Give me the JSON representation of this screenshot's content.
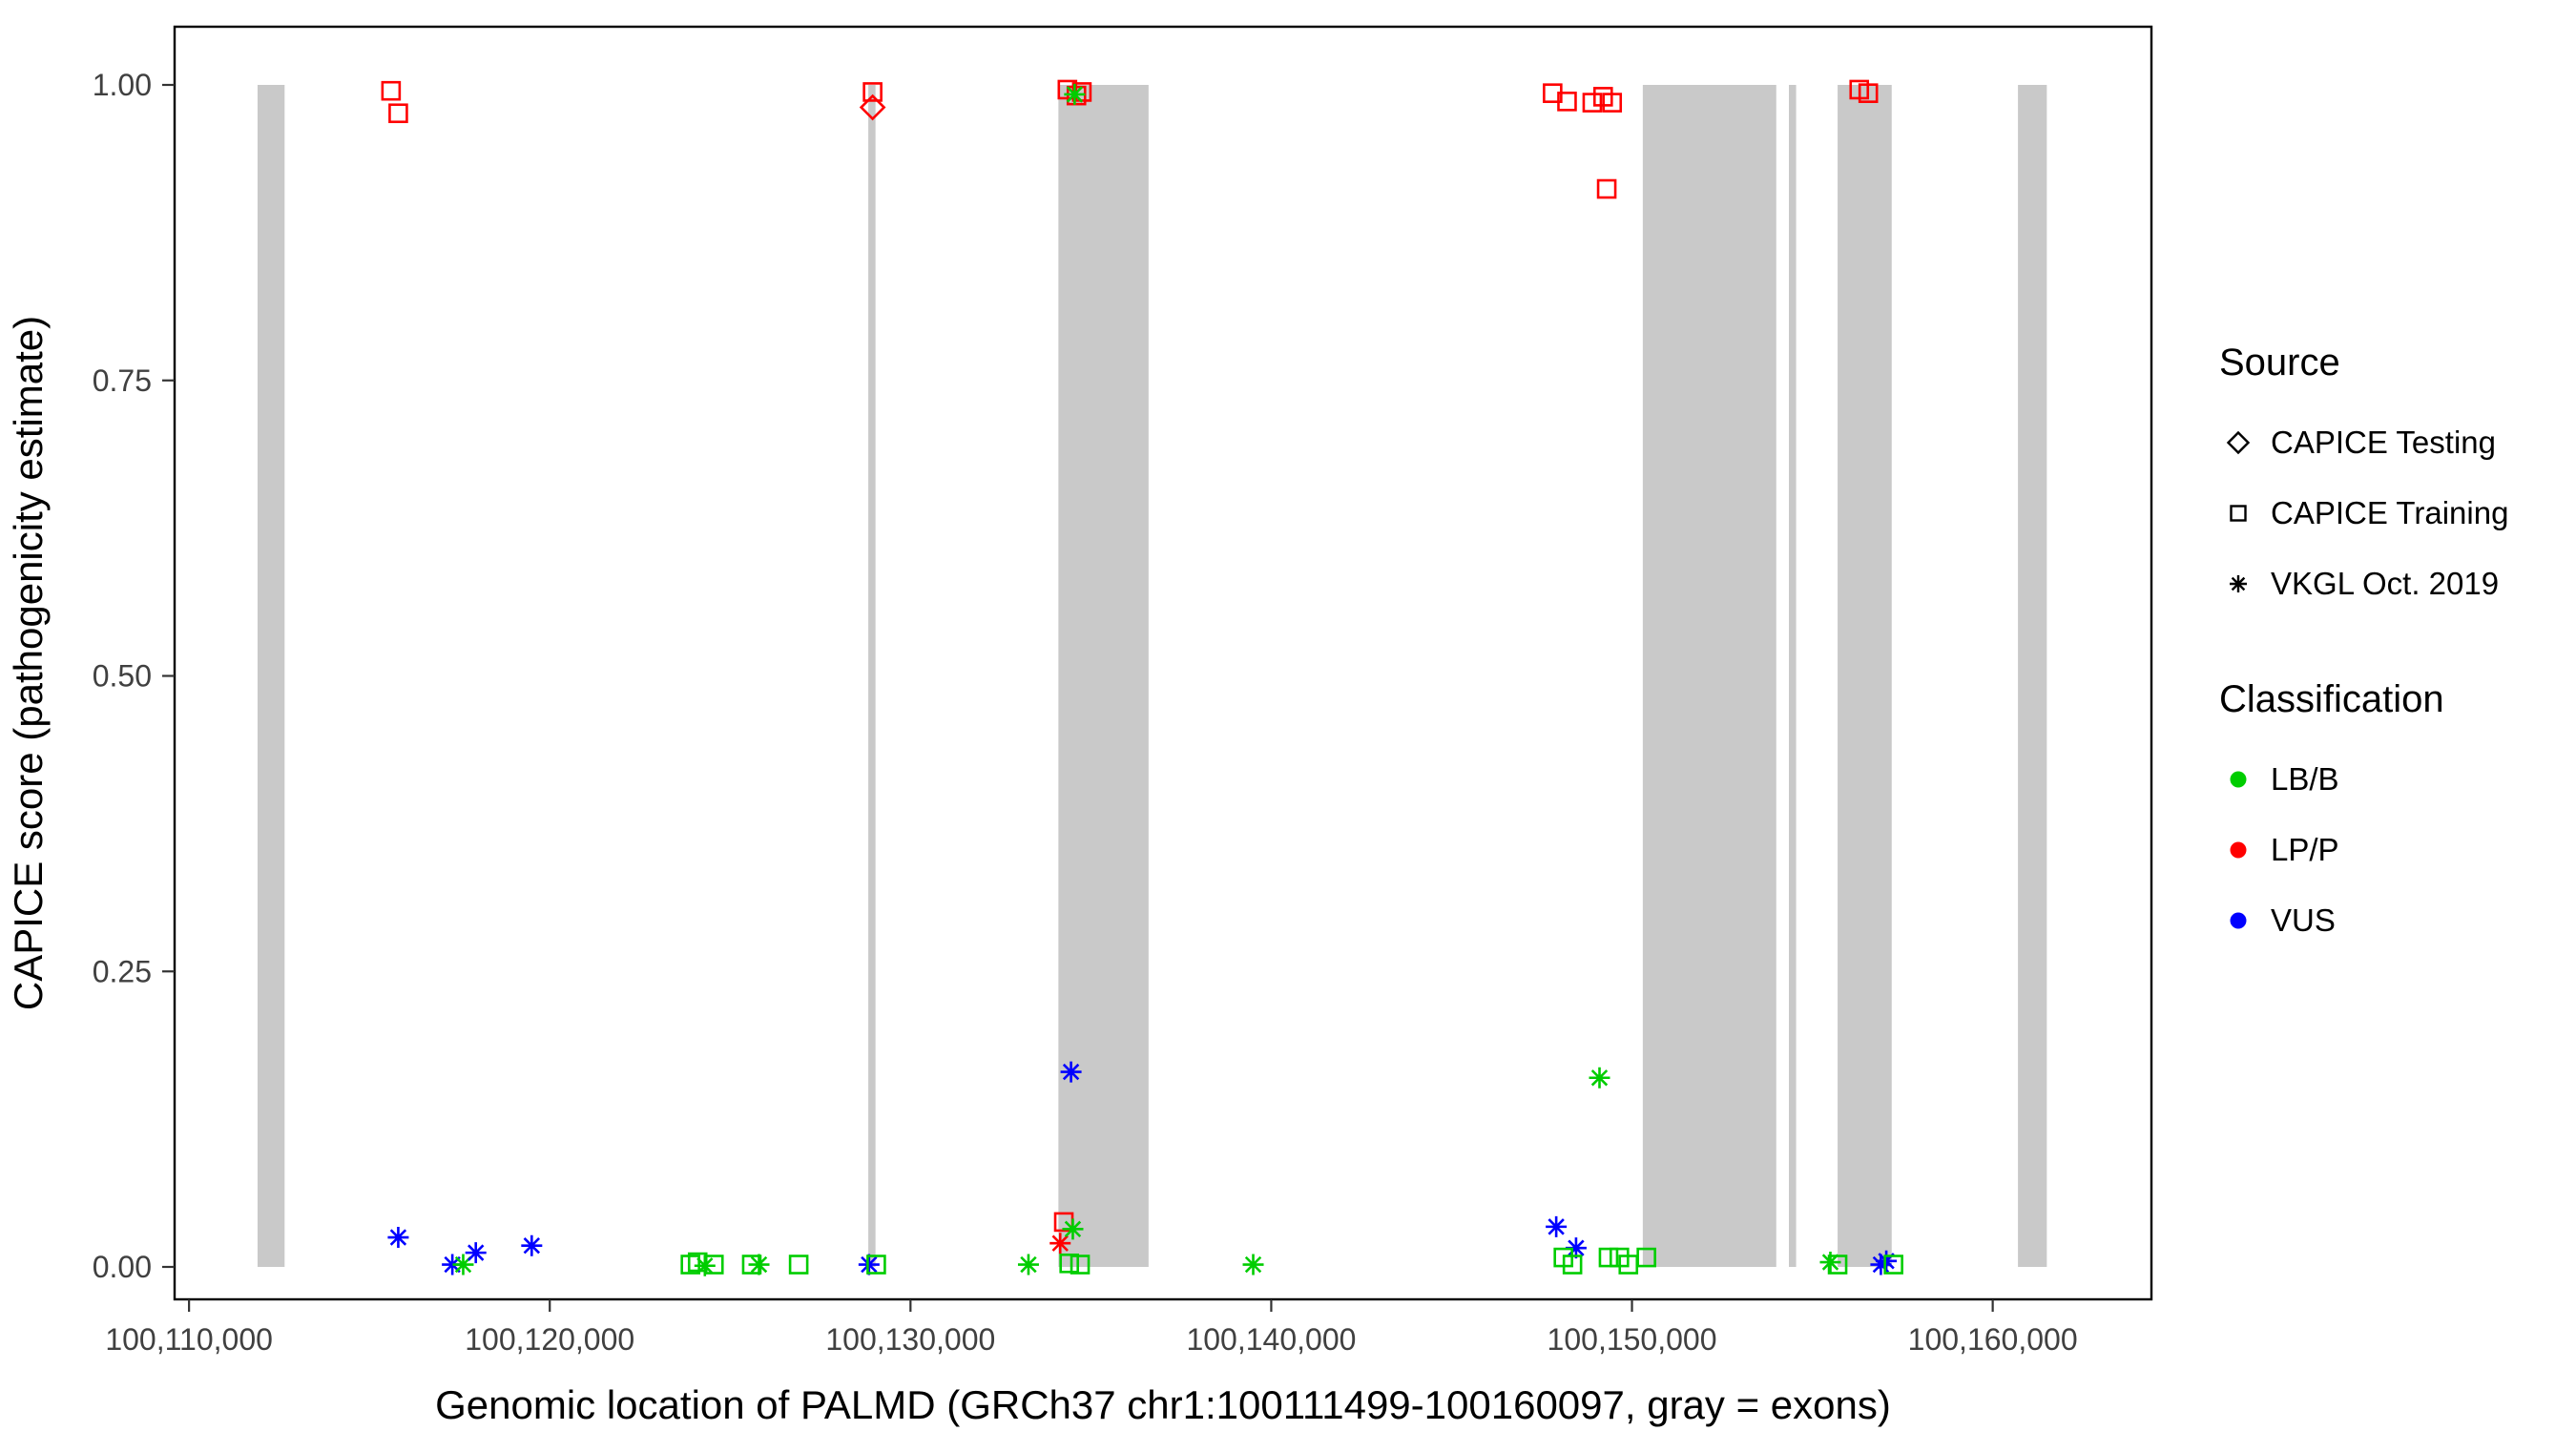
{
  "chart_data": {
    "type": "scatter",
    "title": "",
    "xlabel": "Genomic location of PALMD (GRCh37 chr1:100111499-100160097, gray = exons)",
    "ylabel": "CAPICE score (pathogenicity estimate)",
    "x_domain": [
      100109600,
      100164400
    ],
    "y_domain": [
      0,
      1
    ],
    "grid": false,
    "legend_position": "right",
    "x_ticks": [
      {
        "value": 100110000,
        "label": "100,110,000"
      },
      {
        "value": 100120000,
        "label": "100,120,000"
      },
      {
        "value": 100130000,
        "label": "100,130,000"
      },
      {
        "value": 100140000,
        "label": "100,140,000"
      },
      {
        "value": 100150000,
        "label": "100,150,000"
      },
      {
        "value": 100160000,
        "label": "100,160,000"
      }
    ],
    "y_ticks": [
      {
        "value": 0.0,
        "label": "0.00"
      },
      {
        "value": 0.25,
        "label": "0.25"
      },
      {
        "value": 0.5,
        "label": "0.50"
      },
      {
        "value": 0.75,
        "label": "0.75"
      },
      {
        "value": 1.0,
        "label": "1.00"
      }
    ],
    "exon_color": "#c9c9c9",
    "exons": [
      [
        100111900,
        100112650
      ],
      [
        100128830,
        100129030
      ],
      [
        100134100,
        100136600
      ],
      [
        100150300,
        100154000
      ],
      [
        100154350,
        100154550
      ],
      [
        100155700,
        100157200
      ],
      [
        100160700,
        100161500
      ]
    ],
    "classification_colors": {
      "LB/B": "#00cd00",
      "LP/P": "#ff0000",
      "VUS": "#0000ff"
    },
    "source_shapes": {
      "testing": "diamond",
      "training": "square",
      "vkgl": "asterisk"
    },
    "points": [
      {
        "x": 100115600,
        "y": 0.995,
        "source": "training",
        "classification": "LP/P"
      },
      {
        "x": 100115800,
        "y": 0.976,
        "source": "training",
        "classification": "LP/P"
      },
      {
        "x": 100128950,
        "y": 0.994,
        "source": "training",
        "classification": "LP/P"
      },
      {
        "x": 100128950,
        "y": 0.981,
        "source": "testing",
        "classification": "LP/P"
      },
      {
        "x": 100134350,
        "y": 0.996,
        "source": "training",
        "classification": "LP/P"
      },
      {
        "x": 100134600,
        "y": 0.991,
        "source": "training",
        "classification": "LP/P"
      },
      {
        "x": 100134750,
        "y": 0.994,
        "source": "training",
        "classification": "LP/P"
      },
      {
        "x": 100134550,
        "y": 0.992,
        "source": "vkgl",
        "classification": "LB/B"
      },
      {
        "x": 100147800,
        "y": 0.993,
        "source": "training",
        "classification": "LP/P"
      },
      {
        "x": 100148200,
        "y": 0.986,
        "source": "training",
        "classification": "LP/P"
      },
      {
        "x": 100148900,
        "y": 0.985,
        "source": "training",
        "classification": "LP/P"
      },
      {
        "x": 100149200,
        "y": 0.99,
        "source": "training",
        "classification": "LP/P"
      },
      {
        "x": 100149450,
        "y": 0.985,
        "source": "training",
        "classification": "LP/P"
      },
      {
        "x": 100149300,
        "y": 0.912,
        "source": "training",
        "classification": "LP/P"
      },
      {
        "x": 100156300,
        "y": 0.996,
        "source": "training",
        "classification": "LP/P"
      },
      {
        "x": 100156550,
        "y": 0.993,
        "source": "training",
        "classification": "LP/P"
      },
      {
        "x": 100115800,
        "y": 0.025,
        "source": "vkgl",
        "classification": "VUS"
      },
      {
        "x": 100117300,
        "y": 0.002,
        "source": "vkgl",
        "classification": "VUS"
      },
      {
        "x": 100117600,
        "y": 0.002,
        "source": "vkgl",
        "classification": "LB/B"
      },
      {
        "x": 100117950,
        "y": 0.012,
        "source": "vkgl",
        "classification": "VUS"
      },
      {
        "x": 100119500,
        "y": 0.018,
        "source": "vkgl",
        "classification": "VUS"
      },
      {
        "x": 100123900,
        "y": 0.002,
        "source": "training",
        "classification": "LB/B"
      },
      {
        "x": 100124100,
        "y": 0.004,
        "source": "training",
        "classification": "LB/B"
      },
      {
        "x": 100124300,
        "y": 0.001,
        "source": "vkgl",
        "classification": "LB/B"
      },
      {
        "x": 100124550,
        "y": 0.002,
        "source": "training",
        "classification": "LB/B"
      },
      {
        "x": 100125600,
        "y": 0.002,
        "source": "training",
        "classification": "LB/B"
      },
      {
        "x": 100125800,
        "y": 0.002,
        "source": "vkgl",
        "classification": "LB/B"
      },
      {
        "x": 100126900,
        "y": 0.002,
        "source": "training",
        "classification": "LB/B"
      },
      {
        "x": 100128850,
        "y": 0.002,
        "source": "vkgl",
        "classification": "VUS"
      },
      {
        "x": 100129050,
        "y": 0.002,
        "source": "training",
        "classification": "LB/B"
      },
      {
        "x": 100133270,
        "y": 0.002,
        "source": "vkgl",
        "classification": "LB/B"
      },
      {
        "x": 100134250,
        "y": 0.038,
        "source": "training",
        "classification": "LP/P"
      },
      {
        "x": 100134150,
        "y": 0.02,
        "source": "vkgl",
        "classification": "LP/P"
      },
      {
        "x": 100134500,
        "y": 0.032,
        "source": "vkgl",
        "classification": "LB/B"
      },
      {
        "x": 100134400,
        "y": 0.003,
        "source": "training",
        "classification": "LB/B"
      },
      {
        "x": 100134700,
        "y": 0.002,
        "source": "training",
        "classification": "LB/B"
      },
      {
        "x": 100134450,
        "y": 0.165,
        "source": "vkgl",
        "classification": "VUS"
      },
      {
        "x": 100139500,
        "y": 0.002,
        "source": "vkgl",
        "classification": "LB/B"
      },
      {
        "x": 100147900,
        "y": 0.034,
        "source": "vkgl",
        "classification": "VUS"
      },
      {
        "x": 100148450,
        "y": 0.016,
        "source": "vkgl",
        "classification": "VUS"
      },
      {
        "x": 100148100,
        "y": 0.008,
        "source": "training",
        "classification": "LB/B"
      },
      {
        "x": 100148350,
        "y": 0.002,
        "source": "training",
        "classification": "LB/B"
      },
      {
        "x": 100149100,
        "y": 0.16,
        "source": "vkgl",
        "classification": "LB/B"
      },
      {
        "x": 100149350,
        "y": 0.008,
        "source": "training",
        "classification": "LB/B"
      },
      {
        "x": 100149650,
        "y": 0.008,
        "source": "training",
        "classification": "LB/B"
      },
      {
        "x": 100149900,
        "y": 0.002,
        "source": "training",
        "classification": "LB/B"
      },
      {
        "x": 100150400,
        "y": 0.008,
        "source": "training",
        "classification": "LB/B"
      },
      {
        "x": 100155500,
        "y": 0.004,
        "source": "vkgl",
        "classification": "LB/B"
      },
      {
        "x": 100155700,
        "y": 0.002,
        "source": "training",
        "classification": "LB/B"
      },
      {
        "x": 100156900,
        "y": 0.002,
        "source": "vkgl",
        "classification": "VUS"
      },
      {
        "x": 100157050,
        "y": 0.005,
        "source": "vkgl",
        "classification": "VUS"
      },
      {
        "x": 100157250,
        "y": 0.002,
        "source": "training",
        "classification": "LB/B"
      }
    ]
  },
  "legend": {
    "source": {
      "title": "Source",
      "items": [
        {
          "label": "CAPICE Testing",
          "shape": "diamond"
        },
        {
          "label": "CAPICE Training",
          "shape": "square"
        },
        {
          "label": "VKGL Oct. 2019",
          "shape": "asterisk"
        }
      ]
    },
    "classification": {
      "title": "Classification",
      "items": [
        {
          "label": "LB/B",
          "color": "#00cd00"
        },
        {
          "label": "LP/P",
          "color": "#ff0000"
        },
        {
          "label": "VUS",
          "color": "#0000ff"
        }
      ]
    }
  }
}
